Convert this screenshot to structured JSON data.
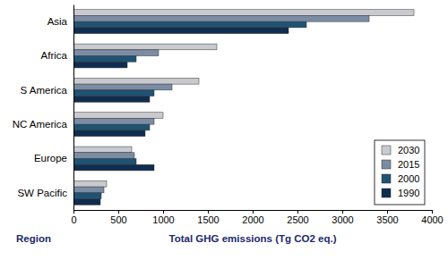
{
  "chart_data": {
    "type": "bar",
    "orientation": "horizontal",
    "x_label": "Total GHG emissions (Tg CO2 eq.)",
    "y_label": "Region",
    "categories": [
      "Asia",
      "Africa",
      "S America",
      "NC America",
      "Europe",
      "SW Pacific"
    ],
    "series": [
      {
        "name": "2030",
        "color": "#c9cacf",
        "values": [
          3800,
          1600,
          1400,
          1000,
          650,
          370
        ]
      },
      {
        "name": "2015",
        "color": "#7b8ca4",
        "values": [
          3300,
          950,
          1100,
          900,
          680,
          340
        ]
      },
      {
        "name": "2000",
        "color": "#1f5373",
        "values": [
          2600,
          700,
          900,
          850,
          700,
          310
        ]
      },
      {
        "name": "1990",
        "color": "#0f2d4f",
        "values": [
          2400,
          600,
          850,
          800,
          900,
          300
        ]
      }
    ],
    "xlim": [
      0,
      4000
    ],
    "xticks": [
      0,
      500,
      1000,
      1500,
      2000,
      2500,
      3000,
      3500,
      4000
    ],
    "grid": false,
    "legend": "lower right"
  }
}
